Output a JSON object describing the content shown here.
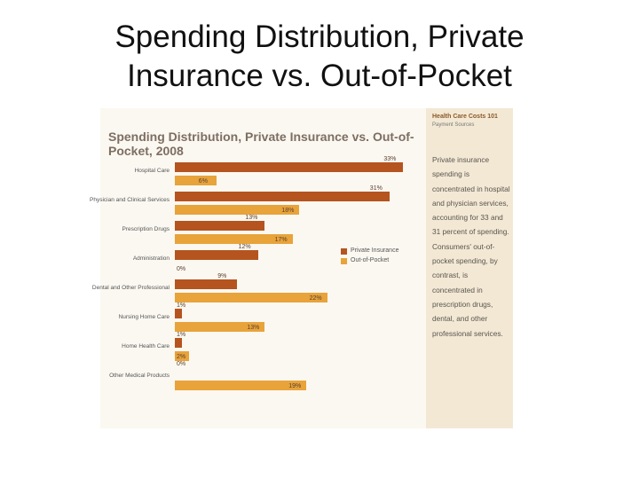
{
  "slide_title": "Spending Distribution, Private Insurance vs. Out-of-Pocket",
  "sidebar": {
    "heading": "Health Care Costs 101",
    "subheading": "Payment Sources",
    "text": "Private insurance spending is concentrated in hospital and physician services, accounting for 33 and 31 percent of spending. Consumers' out-of-pocket spending, by contrast, is concentrated in prescription drugs, dental, and other professional services."
  },
  "chart_data": {
    "type": "hbar",
    "title": "Spending Distribution, Private Insurance vs. Out-of-Pocket, 2008",
    "categories": [
      "Hospital Care",
      "Physician and Clinical Services",
      "Prescription Drugs",
      "Administration",
      "Dental and Other Professional",
      "Nursing Home Care",
      "Home Health Care",
      "Other Medical Products"
    ],
    "series": [
      {
        "name": "Private Insurance",
        "color": "#b5541f",
        "values": [
          33,
          31,
          13,
          12,
          9,
          1,
          1,
          0
        ],
        "value_labels": [
          "33%",
          "31%",
          "13%",
          "12%",
          "9%",
          "1%",
          "1%",
          "0%"
        ]
      },
      {
        "name": "Out-of-Pocket",
        "color": "#e8a33a",
        "values": [
          6,
          18,
          17,
          0,
          22,
          13,
          2,
          19
        ],
        "value_labels": [
          "6%",
          "18%",
          "17%",
          "0%",
          "22%",
          "13%",
          "2%",
          "19%"
        ]
      }
    ]
  }
}
